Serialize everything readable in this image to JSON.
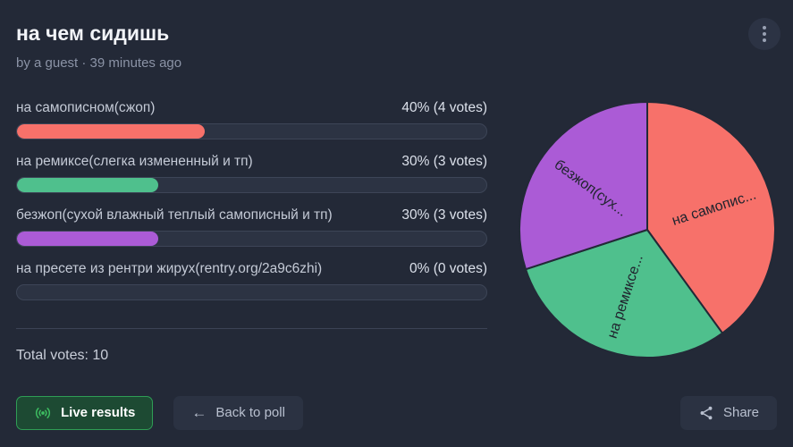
{
  "header": {
    "title": "на чем сидишь",
    "byline": "by a guest · 39 minutes ago"
  },
  "options": [
    {
      "label": "на самописном(сжоп)",
      "result": "40% (4 votes)",
      "percent": 40,
      "color": "#f7716a"
    },
    {
      "label": "на ремиксе(слегка измененный и тп)",
      "result": "30% (3 votes)",
      "percent": 30,
      "color": "#4fc08d"
    },
    {
      "label": "безжоп(сухой влажный теплый самописный и тп)",
      "result": "30% (3 votes)",
      "percent": 30,
      "color": "#ab5bd6"
    },
    {
      "label": "на пресете из рентри жирух(rentry.org/2a9c6zhi)",
      "result": "0% (0 votes)",
      "percent": 0,
      "color": null
    }
  ],
  "total_votes_label": "Total votes: 10",
  "buttons": {
    "live": "Live results",
    "back": "Back to poll",
    "share": "Share"
  },
  "icons": {
    "kebab": "vertical-three-dots",
    "back_arrow": "←",
    "live": "broadcast",
    "share": "share-nodes"
  },
  "colors": {
    "background": "#232937",
    "bar_track": "#2c3343",
    "bar_red": "#f7716a",
    "bar_green": "#4fc08d",
    "bar_purple": "#ab5bd6",
    "live_button_bg": "#1d4a33",
    "live_button_border": "#2f9e55",
    "live_icon_green": "#3dbd61"
  },
  "chart_data": {
    "type": "pie",
    "labels": [
      "на самопис...",
      "на ремиксе...",
      "безжоп(сух..."
    ],
    "full_labels": [
      "на самописном(сжоп)",
      "на ремиксе(слегка измененный и тп)",
      "безжоп(сухой влажный теплый самописный и тп)"
    ],
    "values": [
      40,
      30,
      30
    ],
    "colors": [
      "#f7716a",
      "#4fc08d",
      "#ab5bd6"
    ],
    "start_angle_deg": 0,
    "direction": "clockwise",
    "stroke": "#232937",
    "label_color": "#20242e",
    "legend_position": "none"
  }
}
